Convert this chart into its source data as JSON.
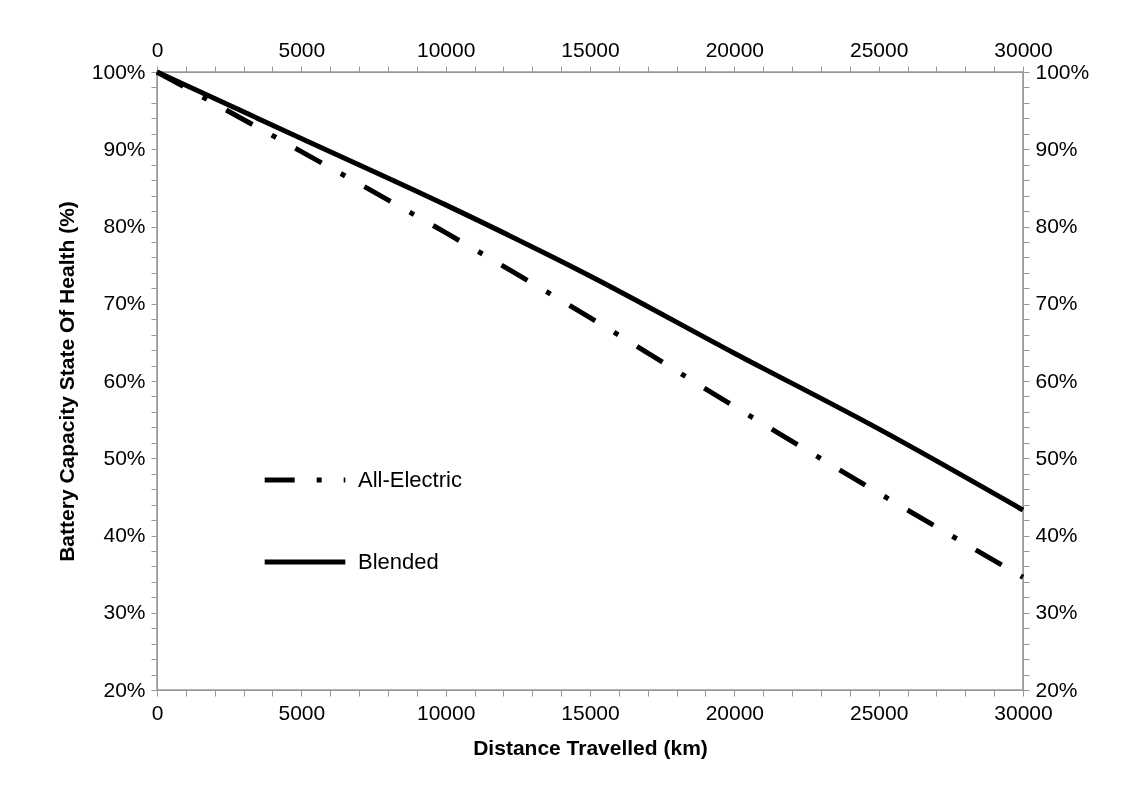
{
  "chart_data": {
    "type": "line",
    "xlabel": "Distance Travelled (km)",
    "ylabel": "Battery Capacity State Of Health (%)",
    "x": [
      0,
      5000,
      10000,
      15000,
      20000,
      25000,
      30000
    ],
    "series": [
      {
        "name": "All-Electric",
        "color": "#000000",
        "line_style": "dashdot",
        "values": [
          100,
          89.7,
          79.2,
          68.2,
          56.7,
          45.5,
          34.6
        ]
      },
      {
        "name": "Blended",
        "color": "#000000",
        "line_style": "solid",
        "values": [
          100,
          91.4,
          82.8,
          73.6,
          63.6,
          53.8,
          43.3
        ]
      }
    ],
    "xlim": [
      0,
      30000
    ],
    "x2lim": [
      0,
      30000
    ],
    "ylim": [
      20,
      100
    ],
    "y2lim": [
      20,
      100
    ],
    "xticks": [
      0,
      {
        "value": 1000,
        "label": null
      },
      {
        "value": 2000,
        "label": null
      },
      {
        "value": 3000,
        "label": null
      },
      {
        "value": 4000,
        "label": null
      },
      5000,
      {
        "value": 6000,
        "label": null
      },
      {
        "value": 7000,
        "label": null
      },
      {
        "value": 8000,
        "label": null
      },
      {
        "value": 9000,
        "label": null
      },
      10000,
      {
        "value": 11000,
        "label": null
      },
      {
        "value": 12000,
        "label": null
      },
      {
        "value": 13000,
        "label": null
      },
      {
        "value": 14000,
        "label": null
      },
      15000,
      {
        "value": 16000,
        "label": null
      },
      {
        "value": 17000,
        "label": null
      },
      {
        "value": 18000,
        "label": null
      },
      {
        "value": 19000,
        "label": null
      },
      20000,
      {
        "value": 21000,
        "label": null
      },
      {
        "value": 22000,
        "label": null
      },
      {
        "value": 23000,
        "label": null
      },
      {
        "value": 24000,
        "label": null
      },
      25000,
      {
        "value": 26000,
        "label": null
      },
      {
        "value": 27000,
        "label": null
      },
      {
        "value": 28000,
        "label": null
      },
      {
        "value": 29000,
        "label": null
      },
      30000
    ],
    "x2ticks": [
      0,
      {
        "value": 1000,
        "label": null
      },
      {
        "value": 2000,
        "label": null
      },
      {
        "value": 3000,
        "label": null
      },
      {
        "value": 4000,
        "label": null
      },
      5000,
      {
        "value": 6000,
        "label": null
      },
      {
        "value": 7000,
        "label": null
      },
      {
        "value": 8000,
        "label": null
      },
      {
        "value": 9000,
        "label": null
      },
      10000,
      {
        "value": 11000,
        "label": null
      },
      {
        "value": 12000,
        "label": null
      },
      {
        "value": 13000,
        "label": null
      },
      {
        "value": 14000,
        "label": null
      },
      15000,
      {
        "value": 16000,
        "label": null
      },
      {
        "value": 17000,
        "label": null
      },
      {
        "value": 18000,
        "label": null
      },
      {
        "value": 19000,
        "label": null
      },
      20000,
      {
        "value": 21000,
        "label": null
      },
      {
        "value": 22000,
        "label": null
      },
      {
        "value": 23000,
        "label": null
      },
      {
        "value": 24000,
        "label": null
      },
      25000,
      {
        "value": 26000,
        "label": null
      },
      {
        "value": 27000,
        "label": null
      },
      {
        "value": 28000,
        "label": null
      },
      {
        "value": 29000,
        "label": null
      },
      30000
    ],
    "yticks": [
      {
        "value": 20,
        "label": "20%"
      },
      {
        "value": 22,
        "label": null
      },
      {
        "value": 24,
        "label": null
      },
      {
        "value": 26,
        "label": null
      },
      {
        "value": 28,
        "label": null
      },
      {
        "value": 30,
        "label": "30%"
      },
      {
        "value": 32,
        "label": null
      },
      {
        "value": 34,
        "label": null
      },
      {
        "value": 36,
        "label": null
      },
      {
        "value": 38,
        "label": null
      },
      {
        "value": 40,
        "label": "40%"
      },
      {
        "value": 42,
        "label": null
      },
      {
        "value": 44,
        "label": null
      },
      {
        "value": 46,
        "label": null
      },
      {
        "value": 48,
        "label": null
      },
      {
        "value": 50,
        "label": "50%"
      },
      {
        "value": 52,
        "label": null
      },
      {
        "value": 54,
        "label": null
      },
      {
        "value": 56,
        "label": null
      },
      {
        "value": 58,
        "label": null
      },
      {
        "value": 60,
        "label": "60%"
      },
      {
        "value": 62,
        "label": null
      },
      {
        "value": 64,
        "label": null
      },
      {
        "value": 66,
        "label": null
      },
      {
        "value": 68,
        "label": null
      },
      {
        "value": 70,
        "label": "70%"
      },
      {
        "value": 72,
        "label": null
      },
      {
        "value": 74,
        "label": null
      },
      {
        "value": 76,
        "label": null
      },
      {
        "value": 78,
        "label": null
      },
      {
        "value": 80,
        "label": "80%"
      },
      {
        "value": 82,
        "label": null
      },
      {
        "value": 84,
        "label": null
      },
      {
        "value": 86,
        "label": null
      },
      {
        "value": 88,
        "label": null
      },
      {
        "value": 90,
        "label": "90%"
      },
      {
        "value": 92,
        "label": null
      },
      {
        "value": 94,
        "label": null
      },
      {
        "value": 96,
        "label": null
      },
      {
        "value": 98,
        "label": null
      },
      {
        "value": 100,
        "label": "100%"
      }
    ],
    "y2ticks": [
      {
        "value": 20,
        "label": "20%"
      },
      {
        "value": 22,
        "label": null
      },
      {
        "value": 24,
        "label": null
      },
      {
        "value": 26,
        "label": null
      },
      {
        "value": 28,
        "label": null
      },
      {
        "value": 30,
        "label": "30%"
      },
      {
        "value": 32,
        "label": null
      },
      {
        "value": 34,
        "label": null
      },
      {
        "value": 36,
        "label": null
      },
      {
        "value": 38,
        "label": null
      },
      {
        "value": 40,
        "label": "40%"
      },
      {
        "value": 42,
        "label": null
      },
      {
        "value": 44,
        "label": null
      },
      {
        "value": 46,
        "label": null
      },
      {
        "value": 48,
        "label": null
      },
      {
        "value": 50,
        "label": "50%"
      },
      {
        "value": 52,
        "label": null
      },
      {
        "value": 54,
        "label": null
      },
      {
        "value": 56,
        "label": null
      },
      {
        "value": 58,
        "label": null
      },
      {
        "value": 60,
        "label": "60%"
      },
      {
        "value": 62,
        "label": null
      },
      {
        "value": 64,
        "label": null
      },
      {
        "value": 66,
        "label": null
      },
      {
        "value": 68,
        "label": null
      },
      {
        "value": 70,
        "label": "70%"
      },
      {
        "value": 72,
        "label": null
      },
      {
        "value": 74,
        "label": null
      },
      {
        "value": 76,
        "label": null
      },
      {
        "value": 78,
        "label": null
      },
      {
        "value": 80,
        "label": "80%"
      },
      {
        "value": 82,
        "label": null
      },
      {
        "value": 84,
        "label": null
      },
      {
        "value": 86,
        "label": null
      },
      {
        "value": 88,
        "label": null
      },
      {
        "value": 90,
        "label": "90%"
      },
      {
        "value": 92,
        "label": null
      },
      {
        "value": 94,
        "label": null
      },
      {
        "value": 96,
        "label": null
      },
      {
        "value": 98,
        "label": null
      },
      {
        "value": 100,
        "label": "100%"
      }
    ],
    "grid": false,
    "legend": "left",
    "marker": "none"
  }
}
